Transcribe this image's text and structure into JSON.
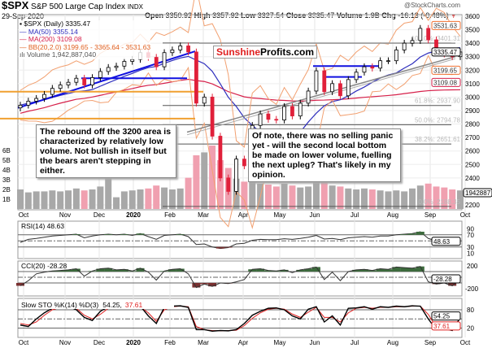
{
  "header": {
    "symbol": "$SPX",
    "name": "S&P 500 Large Cap Index",
    "exchange": "INDX",
    "date": "29-Sep-2020",
    "open_label": "Open",
    "open": "3350.92",
    "high_label": "High",
    "high": "3357.92",
    "low_label": "Low",
    "low": "3327.54",
    "close_label": "Close",
    "close": "3335.47",
    "volume_label": "Volume",
    "volume": "1.9B",
    "chg_label": "Chg",
    "chg": "-16.13 (-0.48%)",
    "chg_icon": "triangle-down",
    "watermark": "@StockCharts.com"
  },
  "legend": {
    "price": "$SPX (Daily) 3335.47",
    "ma50": "MA(50) 3355.14",
    "ma200": "MA(200) 3109.08",
    "bb": "BB(20,2.0) 3199.65 - 3365.64 - 3531.63",
    "volume": "Volume 1,942,887,040"
  },
  "logo": {
    "part1": "Sunshine",
    "part2": "Profits.com"
  },
  "notes": {
    "left": "The rebound off the 3200 area is characterized by relatively low volume. Not bullish in itself but the bears aren't stepping in either.",
    "right": "Of note, there was no selling panic yet - will the second local bottom be made on lower volume, fuelling the next upleg? That's likely in my opinion."
  },
  "colors": {
    "ma50": "#2e2ebd",
    "ma200": "#d6204a",
    "bb": "#f2a070",
    "up": "#000000",
    "down": "#e0203a",
    "vol_up": "#a8a8a8",
    "vol_down": "#f0a0b0",
    "trend_blue": "#1010e0",
    "fill_green": "#3d6b3d",
    "fill_red": "#7a3030"
  },
  "chart_data": [
    {
      "type": "candlestick",
      "title": "$SPX (Daily)",
      "ylim": [
        2150,
        3650
      ],
      "price_ticks": [
        3600,
        3500,
        3400,
        3300,
        3200,
        3100,
        3000,
        2900,
        2800,
        2700,
        2600,
        2500,
        2400,
        2200
      ],
      "price_tick_labels": [
        "3600",
        "3500",
        "3400",
        "3300",
        "3200",
        "3100",
        "3000",
        "2900",
        "2800",
        "2700",
        "2600",
        "2500",
        "2400",
        "2200"
      ],
      "value_tags": [
        {
          "label": "3531.63",
          "value": 3531.63,
          "color": "#f07030"
        },
        {
          "label": "3335.47",
          "value": 3335.47,
          "color": "#000000"
        },
        {
          "label": "3199.65",
          "value": 3199.65,
          "color": "#f07030"
        },
        {
          "label": "3109.08",
          "value": 3109.08,
          "color": "#d6204a"
        }
      ],
      "fib_levels": [
        {
          "label": "100.0%: 3401.31",
          "value": 3401.31
        },
        {
          "label": "61.8%: 2937.90",
          "value": 2937.9
        },
        {
          "label": "50.0%: 2794.78",
          "value": 2794.78
        },
        {
          "label": "38.2%: 2651.61",
          "value": 2651.61
        },
        {
          "label": "0.0%: 2188.35",
          "value": 2188.35
        }
      ],
      "volume_ticks": [
        "1B",
        "2B",
        "3B",
        "4B",
        "5B",
        "6B"
      ],
      "volume_tag": "1942887",
      "x_labels": [
        "Oct",
        "Nov",
        "Dec",
        "2020",
        "Feb",
        "Mar",
        "Apr",
        "May",
        "Jun",
        "Jul",
        "Aug",
        "Sep",
        "Oct"
      ],
      "weekly_close": [
        2940,
        2970,
        2990,
        3020,
        3065,
        3090,
        3110,
        3140,
        3090,
        3145,
        3190,
        3220,
        3230,
        3265,
        3280,
        3330,
        3295,
        3225,
        3330,
        3350,
        3380,
        3335,
        2955,
        3000,
        2710,
        2400,
        2300,
        2540,
        2490,
        2790,
        2875,
        2835,
        2830,
        2930,
        2860,
        2955,
        3045,
        3195,
        3040,
        3100,
        3010,
        3130,
        3185,
        3225,
        3215,
        3270,
        3270,
        3350,
        3400,
        3420,
        3510,
        3425,
        3340,
        3320,
        3300,
        3335
      ],
      "weekly_volume_b": [
        2.0,
        1.7,
        1.8,
        1.8,
        1.9,
        1.8,
        1.9,
        2.1,
        1.9,
        2.0,
        2.3,
        3.8,
        1.2,
        1.8,
        1.9,
        2.0,
        2.1,
        2.4,
        2.2,
        2.0,
        2.1,
        3.2,
        5.5,
        5.8,
        6.5,
        5.0,
        4.2,
        3.1,
        2.8,
        2.9,
        2.6,
        2.5,
        2.3,
        2.6,
        2.4,
        2.2,
        2.3,
        2.9,
        3.0,
        2.4,
        2.3,
        2.1,
        2.0,
        2.1,
        2.0,
        1.9,
        1.8,
        1.9,
        1.8,
        2.1,
        2.4,
        2.6,
        2.3,
        2.2,
        2.0,
        1.9
      ]
    },
    {
      "type": "line",
      "title": "RSI(14) 48.63",
      "latest": "48.63",
      "ticks": [
        "90",
        "70",
        "30",
        "10"
      ],
      "values": [
        45,
        55,
        58,
        62,
        66,
        68,
        70,
        72,
        60,
        66,
        70,
        72,
        70,
        72,
        68,
        74,
        64,
        55,
        68,
        70,
        72,
        64,
        38,
        40,
        30,
        25,
        28,
        40,
        42,
        52,
        55,
        54,
        54,
        57,
        55,
        58,
        62,
        68,
        56,
        58,
        54,
        60,
        62,
        64,
        62,
        66,
        66,
        70,
        72,
        74,
        80,
        58,
        50,
        48,
        45,
        48.63
      ]
    },
    {
      "type": "line",
      "title": "CCI(20) -28.28",
      "latest": "-28.28",
      "ticks": [
        "200",
        "-200"
      ],
      "values": [
        -150,
        -60,
        60,
        90,
        110,
        120,
        130,
        150,
        20,
        110,
        150,
        160,
        130,
        140,
        110,
        160,
        90,
        -50,
        110,
        140,
        150,
        60,
        -180,
        -120,
        -160,
        -100,
        -110,
        -80,
        -40,
        140,
        150,
        120,
        110,
        130,
        80,
        130,
        150,
        180,
        -40,
        90,
        -60,
        100,
        130,
        140,
        120,
        150,
        140,
        180,
        170,
        160,
        190,
        -80,
        -120,
        -100,
        -150,
        -28.28
      ]
    },
    {
      "type": "line",
      "title": "Slow STO %K(14) %D(3)",
      "k_label": "54.25,",
      "d_label": "37.61",
      "k_latest": "54.25",
      "d_latest": "37.61",
      "ticks": [
        "80",
        "20"
      ],
      "k": [
        30,
        25,
        50,
        70,
        85,
        90,
        92,
        80,
        55,
        45,
        75,
        90,
        85,
        88,
        86,
        92,
        60,
        35,
        88,
        92,
        93,
        88,
        15,
        15,
        10,
        12,
        11,
        15,
        35,
        62,
        75,
        85,
        86,
        80,
        60,
        50,
        82,
        90,
        40,
        60,
        30,
        85,
        86,
        90,
        82,
        90,
        88,
        92,
        90,
        93,
        92,
        50,
        15,
        18,
        12,
        54.25
      ],
      "d": [
        35,
        30,
        40,
        62,
        80,
        88,
        90,
        85,
        62,
        50,
        65,
        85,
        86,
        87,
        87,
        90,
        70,
        42,
        80,
        90,
        92,
        90,
        25,
        15,
        12,
        11,
        12,
        13,
        28,
        52,
        70,
        82,
        85,
        82,
        66,
        55,
        72,
        88,
        55,
        55,
        40,
        70,
        85,
        88,
        85,
        88,
        88,
        90,
        90,
        92,
        92,
        65,
        22,
        17,
        14,
        37.61
      ]
    }
  ]
}
